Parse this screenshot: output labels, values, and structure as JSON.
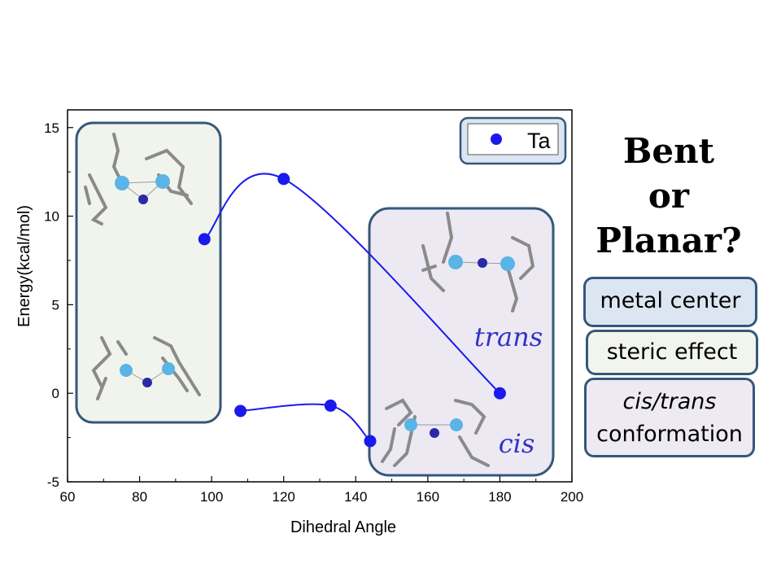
{
  "chart_data": {
    "type": "scatter",
    "xlabel": "Dihedral Angle",
    "ylabel": "Energy(kcal/mol)",
    "xlim": [
      60,
      200
    ],
    "ylim": [
      -5,
      16
    ],
    "x_ticks": [
      "60",
      "80",
      "100",
      "120",
      "140",
      "160",
      "180",
      "200"
    ],
    "y_ticks": [
      "-5",
      "0",
      "5",
      "10",
      "15"
    ],
    "legend": {
      "label": "Ta",
      "position": "top-right"
    },
    "series": [
      {
        "name": "Ta",
        "color": "#1a1aee",
        "curves": [
          {
            "label": "trans",
            "points": [
              [
                98,
                8.7
              ],
              [
                120,
                12.1
              ],
              [
                180,
                0.0
              ]
            ]
          },
          {
            "label": "cis",
            "points": [
              [
                108,
                -1.0
              ],
              [
                133,
                -0.7
              ],
              [
                144,
                -2.7
              ]
            ]
          }
        ]
      }
    ],
    "annotations": [
      "trans",
      "cis"
    ]
  },
  "sidebar": {
    "title_lines": [
      "Bent",
      "or",
      "Planar?"
    ],
    "tags": {
      "metal_center": "metal center",
      "steric_effect": "steric effect",
      "conf_italic": "cis/trans",
      "conf_rest": "conformation"
    }
  },
  "colors": {
    "series": "#1a1aee",
    "left_panel_bg": "#f1f4ec",
    "right_panel_bg": "#ece9f3",
    "panel_border": "#35577a"
  },
  "icons": [
    "molecule-structure-icon"
  ]
}
